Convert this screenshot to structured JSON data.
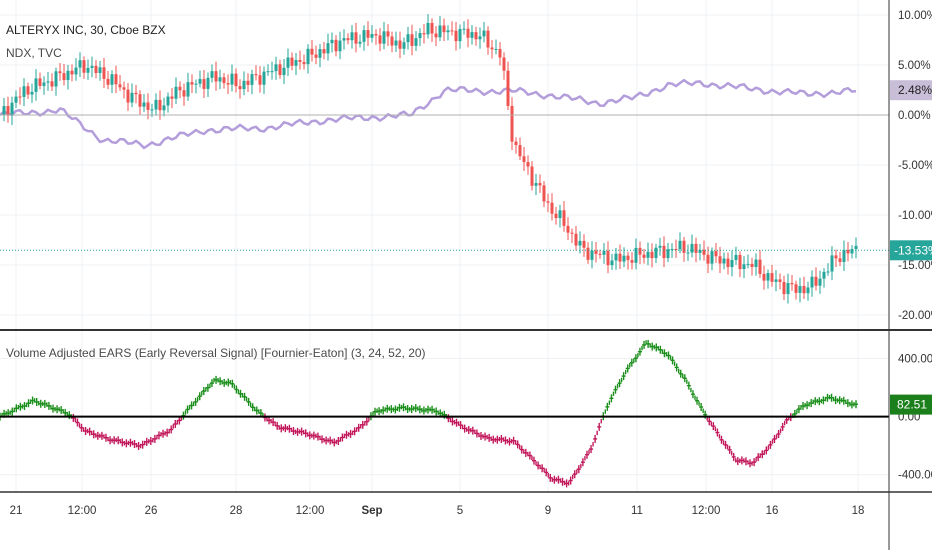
{
  "chart_data": [
    {
      "type": "candlestick",
      "title": "ALTERYX INC, 30, Cboe BZX",
      "compare_series_label": "NDX, TVC",
      "y_axis_unit": "percent",
      "ylim": [
        -21.5,
        11.5
      ],
      "y_ticks": [
        "10.00%",
        "5.00%",
        "0.00%",
        "-5.00%",
        "-10.00%",
        "-15.00%",
        "-20.00%"
      ],
      "y_tick_values": [
        10,
        5,
        0,
        -5,
        -10,
        -15,
        -20
      ],
      "last_value_label": "-13.53%",
      "last_value": -13.53,
      "compare_last_label": "2.48%",
      "compare_last_value": 2.48,
      "up_color": "#26a69a",
      "down_color": "#ef5350",
      "compare_color": "#b39ddb",
      "price_path_key": [
        [
          0,
          0.0
        ],
        [
          0.03,
          2.5
        ],
        [
          0.06,
          3.5
        ],
        [
          0.1,
          5.0
        ],
        [
          0.13,
          3.5
        ],
        [
          0.15,
          2.0
        ],
        [
          0.18,
          0.5
        ],
        [
          0.21,
          2.5
        ],
        [
          0.25,
          3.8
        ],
        [
          0.28,
          3.0
        ],
        [
          0.32,
          4.5
        ],
        [
          0.36,
          5.8
        ],
        [
          0.4,
          7.5
        ],
        [
          0.44,
          8.0
        ],
        [
          0.47,
          7.0
        ],
        [
          0.5,
          8.5
        ],
        [
          0.56,
          8.0
        ],
        [
          0.585,
          6.0
        ],
        [
          0.6,
          -3.0
        ],
        [
          0.62,
          -6.0
        ],
        [
          0.64,
          -9.0
        ],
        [
          0.66,
          -11.0
        ],
        [
          0.68,
          -13.5
        ],
        [
          0.72,
          -14.5
        ],
        [
          0.76,
          -13.8
        ],
        [
          0.8,
          -13.2
        ],
        [
          0.84,
          -14.5
        ],
        [
          0.88,
          -15.0
        ],
        [
          0.9,
          -16.5
        ],
        [
          0.93,
          -17.5
        ],
        [
          0.95,
          -17.0
        ],
        [
          0.98,
          -14.0
        ],
        [
          1.0,
          -13.5
        ]
      ],
      "compare_path_key": [
        [
          0,
          0.0
        ],
        [
          0.07,
          0.5
        ],
        [
          0.12,
          -2.5
        ],
        [
          0.17,
          -3.0
        ],
        [
          0.24,
          -1.5
        ],
        [
          0.31,
          -1.3
        ],
        [
          0.38,
          -0.5
        ],
        [
          0.48,
          0.0
        ],
        [
          0.52,
          2.5
        ],
        [
          0.56,
          2.4
        ],
        [
          0.6,
          2.4
        ],
        [
          0.64,
          2.0
        ],
        [
          0.7,
          1.2
        ],
        [
          0.74,
          1.7
        ],
        [
          0.78,
          3.0
        ],
        [
          0.82,
          3.2
        ],
        [
          0.88,
          2.6
        ],
        [
          0.94,
          2.1
        ],
        [
          1.0,
          2.4
        ]
      ]
    },
    {
      "type": "line",
      "title": "Volume Adjusted EARS (Early Reversal Signal) [Fournier-Eaton] (3, 24, 52, 20)",
      "ylim": [
        -520,
        590
      ],
      "y_ticks": [
        "400.00",
        "0.00",
        "-400.00"
      ],
      "y_tick_values": [
        400,
        0,
        -400
      ],
      "last_value_label": "82.51",
      "last_value": 82.51,
      "positive_color": "#1b8f1b",
      "negative_color": "#c2185b",
      "zero_line_color": "#000000",
      "series_key": [
        [
          0,
          0
        ],
        [
          0.04,
          110
        ],
        [
          0.08,
          20
        ],
        [
          0.1,
          -100
        ],
        [
          0.13,
          -160
        ],
        [
          0.165,
          -200
        ],
        [
          0.2,
          -90
        ],
        [
          0.22,
          50
        ],
        [
          0.25,
          250
        ],
        [
          0.27,
          230
        ],
        [
          0.3,
          40
        ],
        [
          0.325,
          -70
        ],
        [
          0.36,
          -120
        ],
        [
          0.39,
          -180
        ],
        [
          0.42,
          -80
        ],
        [
          0.44,
          40
        ],
        [
          0.47,
          60
        ],
        [
          0.51,
          40
        ],
        [
          0.54,
          -70
        ],
        [
          0.57,
          -150
        ],
        [
          0.6,
          -170
        ],
        [
          0.62,
          -280
        ],
        [
          0.645,
          -430
        ],
        [
          0.665,
          -460
        ],
        [
          0.69,
          -230
        ],
        [
          0.71,
          80
        ],
        [
          0.73,
          300
        ],
        [
          0.755,
          510
        ],
        [
          0.78,
          430
        ],
        [
          0.8,
          260
        ],
        [
          0.82,
          50
        ],
        [
          0.84,
          -130
        ],
        [
          0.86,
          -300
        ],
        [
          0.88,
          -320
        ],
        [
          0.9,
          -200
        ],
        [
          0.92,
          -20
        ],
        [
          0.94,
          80
        ],
        [
          0.97,
          130
        ],
        [
          1.0,
          80
        ]
      ]
    }
  ],
  "x_axis": {
    "labels": [
      "21",
      "12:00",
      "26",
      "28",
      "12:00",
      "Sep",
      "5",
      "9",
      "11",
      "12:00",
      "16",
      "18"
    ],
    "bold_labels": [
      "Sep"
    ]
  }
}
